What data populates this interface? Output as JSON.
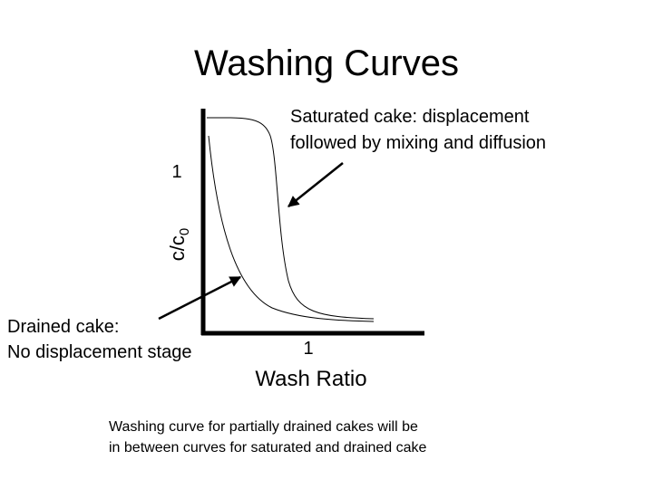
{
  "title": "Washing Curves",
  "y_axis": {
    "label": "c/c",
    "subscript": "0",
    "tick": "1"
  },
  "x_axis": {
    "label": "Wash Ratio",
    "tick": "1"
  },
  "annotations": {
    "saturated": [
      "Saturated cake: displacement",
      "followed by mixing and diffusion"
    ],
    "drained": [
      "Drained cake:",
      "No displacement stage"
    ]
  },
  "caption": [
    "Washing curve for partially drained cakes will be",
    "in between curves for saturated and drained cake"
  ]
}
